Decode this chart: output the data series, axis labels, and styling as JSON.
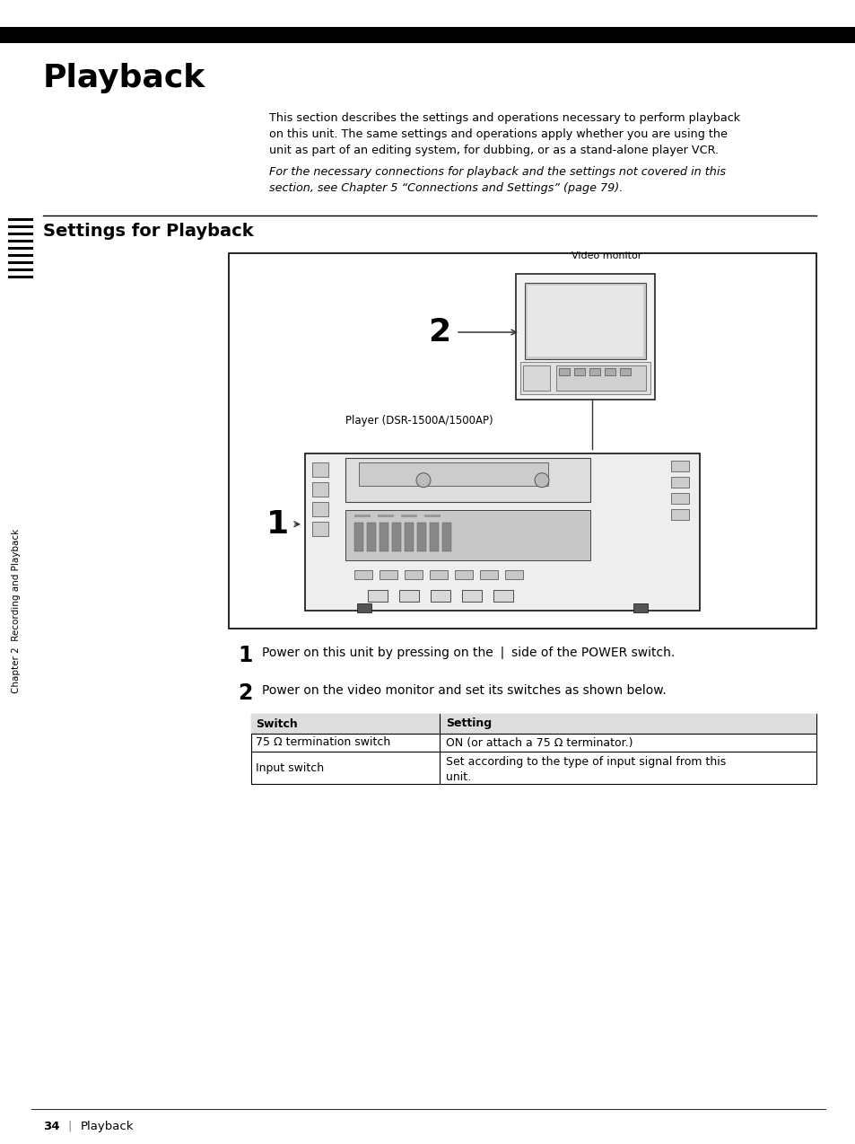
{
  "page_bg": "#ffffff",
  "top_bar_color": "#000000",
  "title": "Playback",
  "title_fontsize": 26,
  "title_fontweight": "bold",
  "intro_text": "This section describes the settings and operations necessary to perform playback\non this unit. The same settings and operations apply whether you are using the\nunit as part of an editing system, for dubbing, or as a stand-alone player VCR.",
  "italic_text": "For the necessary connections for playback and the settings not covered in this\nsection, see Chapter 5 “Connections and Settings” (page 79).",
  "section_title": "Settings for Playback",
  "section_title_fontsize": 14,
  "step1_text": "Power on this unit by pressing on the ❘ side of the POWER switch.",
  "step2_text": "Power on the video monitor and set its switches as shown below.",
  "table_header": [
    "Switch",
    "Setting"
  ],
  "table_rows": [
    [
      "75 Ω termination switch",
      "ON (or attach a 75 Ω terminator.)"
    ],
    [
      "Input switch",
      "Set according to the type of input signal from this\nunit."
    ]
  ],
  "table_fontsize": 9,
  "side_text": "Chapter 2  Recording and Playback",
  "footer_num": "34",
  "footer_text": "Playback",
  "video_monitor_label": "Video monitor",
  "player_label": "Player (DSR-1500A/1500AP)",
  "num_sidebar_lines": 9
}
